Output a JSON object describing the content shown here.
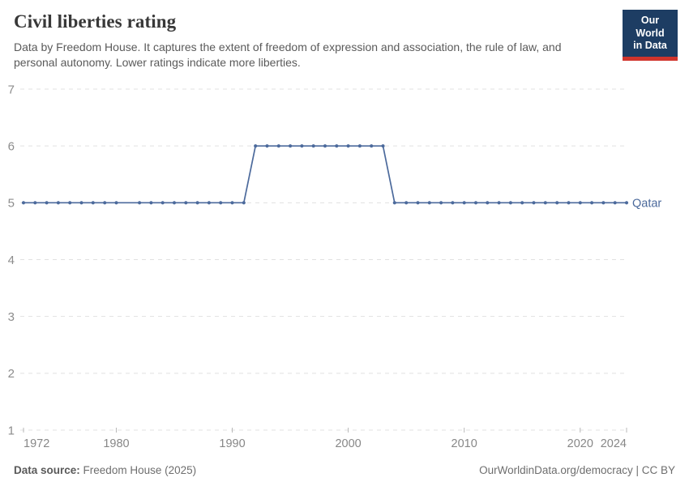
{
  "header": {
    "title": "Civil liberties rating",
    "subtitle": "Data by Freedom House. It captures the extent of freedom of expression and association, the rule of law, and personal autonomy. Lower ratings indicate more liberties."
  },
  "logo": {
    "line1": "Our World",
    "line2": "in Data",
    "bg_color": "#1d3d63",
    "accent_color": "#d0342c"
  },
  "chart_data": {
    "type": "line",
    "title": "Civil liberties rating",
    "entity_label": "Qatar",
    "line_color": "#4C6A9C",
    "grid": "dashed-horizontal",
    "x_range": [
      1972,
      2024
    ],
    "y_range": [
      1,
      7
    ],
    "x_ticks": [
      1972,
      1980,
      1990,
      2000,
      2010,
      2020,
      2024
    ],
    "y_ticks": [
      1,
      2,
      3,
      4,
      5,
      6,
      7
    ],
    "series": [
      {
        "name": "Qatar",
        "points": [
          [
            1972,
            5
          ],
          [
            1973,
            5
          ],
          [
            1974,
            5
          ],
          [
            1975,
            5
          ],
          [
            1976,
            5
          ],
          [
            1977,
            5
          ],
          [
            1978,
            5
          ],
          [
            1979,
            5
          ],
          [
            1980,
            5
          ],
          [
            1982,
            5
          ],
          [
            1983,
            5
          ],
          [
            1984,
            5
          ],
          [
            1985,
            5
          ],
          [
            1986,
            5
          ],
          [
            1987,
            5
          ],
          [
            1988,
            5
          ],
          [
            1989,
            5
          ],
          [
            1990,
            5
          ],
          [
            1991,
            5
          ],
          [
            1992,
            6
          ],
          [
            1993,
            6
          ],
          [
            1994,
            6
          ],
          [
            1995,
            6
          ],
          [
            1996,
            6
          ],
          [
            1997,
            6
          ],
          [
            1998,
            6
          ],
          [
            1999,
            6
          ],
          [
            2000,
            6
          ],
          [
            2001,
            6
          ],
          [
            2002,
            6
          ],
          [
            2003,
            6
          ],
          [
            2004,
            5
          ],
          [
            2005,
            5
          ],
          [
            2006,
            5
          ],
          [
            2007,
            5
          ],
          [
            2008,
            5
          ],
          [
            2009,
            5
          ],
          [
            2010,
            5
          ],
          [
            2011,
            5
          ],
          [
            2012,
            5
          ],
          [
            2013,
            5
          ],
          [
            2014,
            5
          ],
          [
            2015,
            5
          ],
          [
            2016,
            5
          ],
          [
            2017,
            5
          ],
          [
            2018,
            5
          ],
          [
            2019,
            5
          ],
          [
            2020,
            5
          ],
          [
            2021,
            5
          ],
          [
            2022,
            5
          ],
          [
            2023,
            5
          ],
          [
            2024,
            5
          ]
        ]
      }
    ]
  },
  "footer": {
    "datasource_label": "Data source:",
    "datasource_value": "Freedom House (2025)",
    "link": "OurWorldinData.org/democracy",
    "separator": " | ",
    "license": "CC BY"
  }
}
